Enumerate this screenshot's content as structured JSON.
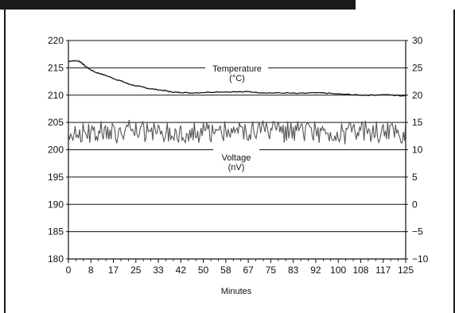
{
  "chart_data": {
    "type": "line",
    "title": "",
    "xlabel": "Minutes",
    "ylabel": "",
    "xlim": [
      0,
      125
    ],
    "ylim_left": [
      180,
      220
    ],
    "ylim_right": [
      -10,
      30
    ],
    "x_ticks": [
      "0",
      "8",
      "17",
      "25",
      "33",
      "42",
      "50",
      "58",
      "67",
      "75",
      "83",
      "92",
      "100",
      "108",
      "117",
      "125"
    ],
    "y_left_ticks": [
      "220",
      "215",
      "210",
      "205",
      "200",
      "195",
      "190",
      "185",
      "180"
    ],
    "y_right_ticks": [
      "30",
      "25",
      "20",
      "15",
      "10",
      "5",
      "0",
      "−5",
      "−10"
    ],
    "grid": "horizontal",
    "colors": {
      "temperature": "#111111",
      "voltage": "#555555",
      "grid": "#111111"
    },
    "annotations": [
      {
        "text": "Temperature",
        "series": "temperature"
      },
      {
        "text": "(°C)",
        "series": "temperature"
      },
      {
        "text": "Voltage",
        "series": "voltage"
      },
      {
        "text": "(nV)",
        "series": "voltage"
      }
    ],
    "series": [
      {
        "axis": "left",
        "x": [
          0,
          2,
          4,
          5,
          6,
          8,
          10,
          12,
          15,
          17,
          20,
          22,
          25,
          28,
          30,
          33,
          36,
          38,
          40,
          42,
          45,
          50,
          55,
          60,
          67,
          70,
          75,
          80,
          85,
          90,
          95,
          100,
          105,
          108,
          112,
          117,
          120,
          123,
          125
        ],
        "y": [
          216.2,
          216.3,
          216.2,
          215.9,
          215.4,
          214.7,
          214.2,
          213.9,
          213.4,
          213.0,
          212.5,
          212.1,
          211.7,
          211.4,
          211.2,
          211.0,
          210.8,
          210.6,
          210.5,
          210.5,
          210.4,
          210.5,
          210.6,
          210.6,
          210.6,
          210.5,
          210.4,
          210.4,
          210.3,
          210.4,
          210.4,
          210.2,
          210.1,
          210.0,
          210.0,
          210.1,
          210.0,
          209.9,
          209.9
        ]
      },
      {
        "axis": "left",
        "center": 203.2,
        "noise_amplitude": 2.0,
        "x_range": [
          0,
          125
        ]
      }
    ]
  }
}
